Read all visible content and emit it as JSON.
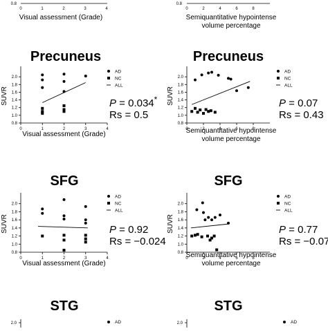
{
  "panels_shared": {
    "ylabel": "SUVR",
    "legend": [
      "AD",
      "NC",
      "ALL"
    ],
    "top_row_xlabels": {
      "visual": "Visual assessment (Grade)",
      "semi_line1": "Semiquantitative hypointense",
      "semi_line2": "volume percentage"
    }
  },
  "chart_data": [
    {
      "id": "precuneus-visual",
      "type": "scatter",
      "title": "Precuneus",
      "xlabel": "Visual assessment (Grade)",
      "ylabel": "SUVR",
      "xlim": [
        0,
        4
      ],
      "ylim": [
        0.8,
        2.2
      ],
      "xticks": [
        "0",
        "1",
        "2",
        "3",
        "4"
      ],
      "yticks": [
        "0.8",
        "1.0",
        "1.2",
        "1.4",
        "1.6",
        "1.8",
        "2.0"
      ],
      "series": [
        {
          "name": "AD",
          "marker": "circle",
          "x": [
            1,
            1,
            1,
            2,
            2,
            2,
            3
          ],
          "y": [
            2.05,
            1.92,
            1.72,
            2.07,
            1.88,
            1.62,
            2.02
          ]
        },
        {
          "name": "NC",
          "marker": "square",
          "x": [
            1,
            1,
            1,
            2,
            2,
            2
          ],
          "y": [
            1.18,
            1.1,
            1.05,
            1.25,
            1.15,
            1.1
          ]
        },
        {
          "name": "ALL",
          "type": "line",
          "x": [
            1,
            3
          ],
          "y": [
            1.33,
            1.85
          ]
        }
      ],
      "stat_p_prefix": "P",
      "stat_p_value": " = 0.034",
      "stat_star": "*",
      "stat_rs": "Rs = 0.5"
    },
    {
      "id": "precuneus-semi",
      "type": "scatter",
      "title": "Precuneus",
      "xlabel_line1": "Semiquantitative hypointense",
      "xlabel_line2": "volume percentage",
      "ylabel": "SUVR",
      "xlim": [
        0,
        10
      ],
      "ylim": [
        0.8,
        2.2
      ],
      "xticks": [
        "0",
        "2",
        "4",
        "6",
        "8"
      ],
      "yticks": [
        "0.8",
        "1.0",
        "1.2",
        "1.4",
        "1.6",
        "1.8",
        "2.0"
      ],
      "series": [
        {
          "name": "AD",
          "marker": "circle",
          "x": [
            1.0,
            1.8,
            2.6,
            3.0,
            3.8,
            5.0,
            5.3,
            6.0,
            7.4
          ],
          "y": [
            1.92,
            2.05,
            2.1,
            2.12,
            2.04,
            1.96,
            1.94,
            1.64,
            1.72
          ]
        },
        {
          "name": "NC",
          "marker": "square",
          "x": [
            0.6,
            1.0,
            1.3,
            1.6,
            2.0,
            2.3,
            2.6,
            2.9,
            3.4
          ],
          "y": [
            1.1,
            1.18,
            1.08,
            1.14,
            1.05,
            1.15,
            1.1,
            1.12,
            1.08
          ]
        },
        {
          "name": "ALL",
          "type": "line",
          "x": [
            0.6,
            7.6
          ],
          "y": [
            1.28,
            1.88
          ]
        }
      ],
      "stat_p_prefix": "P",
      "stat_p_value": " = 0.07",
      "stat_star": "",
      "stat_rs": "Rs = 0.43"
    },
    {
      "id": "sfg-visual",
      "type": "scatter",
      "title": "SFG",
      "xlabel": "Visual assessment (Grade)",
      "ylabel": "SUVR",
      "xlim": [
        0,
        4
      ],
      "ylim": [
        0.8,
        2.2
      ],
      "xticks": [
        "0",
        "1",
        "2",
        "3",
        "4"
      ],
      "yticks": [
        "0.8",
        "1.0",
        "1.2",
        "1.4",
        "1.6",
        "1.8",
        "2.0"
      ],
      "series": [
        {
          "name": "AD",
          "marker": "circle",
          "x": [
            1,
            1,
            2,
            2,
            2,
            3,
            3,
            3
          ],
          "y": [
            1.87,
            1.76,
            2.1,
            1.7,
            1.62,
            1.93,
            1.6,
            1.52
          ]
        },
        {
          "name": "NC",
          "marker": "square",
          "x": [
            1,
            2,
            2,
            2,
            3,
            3,
            3
          ],
          "y": [
            1.2,
            1.22,
            1.1,
            0.85,
            1.22,
            1.13,
            1.05
          ]
        },
        {
          "name": "ALL",
          "type": "line",
          "x": [
            0.8,
            3.1
          ],
          "y": [
            1.44,
            1.4
          ]
        }
      ],
      "stat_p_prefix": "P",
      "stat_p_value": " = 0.92",
      "stat_star": "",
      "stat_rs": "Rs = −0.024"
    },
    {
      "id": "sfg-semi",
      "type": "scatter",
      "title": "SFG",
      "xlabel_line1": "Semiquantitative hypointense",
      "xlabel_line2": "volume percentage",
      "ylabel": "SUVR",
      "xlim": [
        0,
        10
      ],
      "ylim": [
        0.8,
        2.2
      ],
      "xticks": [
        "0",
        "2",
        "4",
        "6",
        "8"
      ],
      "yticks": [
        "0.8",
        "1.0",
        "1.2",
        "1.4",
        "1.6",
        "1.8",
        "2.0"
      ],
      "series": [
        {
          "name": "AD",
          "marker": "circle",
          "x": [
            1.2,
            1.9,
            2.0,
            2.2,
            2.6,
            3.0,
            3.4,
            4.0,
            5.0
          ],
          "y": [
            1.85,
            2.02,
            1.78,
            1.6,
            1.66,
            1.6,
            1.66,
            1.72,
            1.52
          ]
        },
        {
          "name": "NC",
          "marker": "square",
          "x": [
            0.6,
            1.0,
            1.3,
            1.8,
            2.5,
            2.8,
            3.0,
            3.3,
            3.6
          ],
          "y": [
            1.2,
            1.22,
            1.24,
            1.18,
            1.2,
            1.1,
            1.15,
            1.2,
            0.86
          ]
        },
        {
          "name": "ALL",
          "type": "line",
          "x": [
            0.5,
            5.1
          ],
          "y": [
            1.4,
            1.5
          ]
        }
      ],
      "stat_p_prefix": "P",
      "stat_p_value": " = 0.77",
      "stat_star": "",
      "stat_rs": "Rs = −0.07"
    }
  ],
  "bottom_panels": [
    {
      "title": "STG",
      "ytick_top": "2.0",
      "legend_ad": "AD"
    },
    {
      "title": "STG",
      "ytick_top": "2.0",
      "legend_ad": "AD"
    }
  ]
}
